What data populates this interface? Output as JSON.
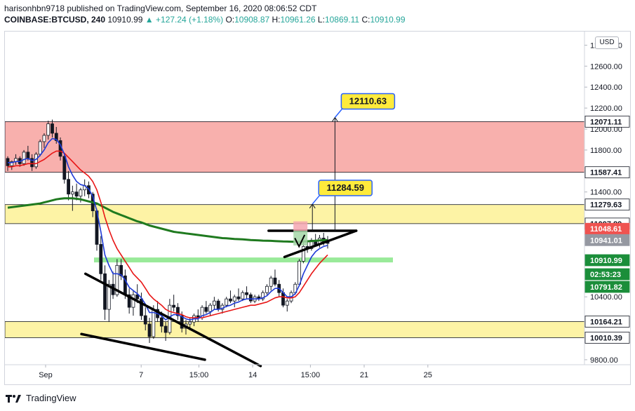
{
  "header": {
    "line1": "harisonhbn9718 published on TradingView.com, September 16, 2020 08:06:52 CDT",
    "symbol": "COINBASE:BTCUSD, 240",
    "last": "10910.99",
    "change_arrow": "▲",
    "change": "+127.24 (+1.18%)",
    "o_label": "O:",
    "o_val": "10908.87",
    "h_label": "H:",
    "h_val": "10961.26",
    "l_label": "L:",
    "l_val": "10869.11",
    "c_label": "C:",
    "c_val": "10910.99"
  },
  "currency_button": "USD",
  "footer": {
    "brand": "TradingView"
  },
  "colors": {
    "up": "#26a69a",
    "down": "#ef5350",
    "resistance_zone": "#f8b0ad",
    "support_zone": "#fdf3a5",
    "green_level": "#8ee88e",
    "ema_fast": "#1e3ad6",
    "ema_slow": "#e81515",
    "sma_long": "#1f7a1f"
  },
  "chart_data": {
    "type": "candlestick",
    "ylim": [
      9740,
      12750
    ],
    "y_ticks": [
      "9800.00",
      "10400.00",
      "11400.00",
      "11600.00",
      "11800.00",
      "12000.00",
      "12200.00",
      "12400.00",
      "12600.00",
      "12800.00"
    ],
    "x_ticks": [
      {
        "label": "Sep",
        "date": "2020-09-01"
      },
      {
        "label": "7",
        "date": "2020-09-07"
      },
      {
        "label": "15:00",
        "date": "2020-09-10 15:00"
      },
      {
        "label": "14",
        "date": "2020-09-14"
      },
      {
        "label": "15:00",
        "date": "2020-09-17 15:00"
      },
      {
        "label": "21",
        "date": "2020-09-21"
      },
      {
        "label": "25",
        "date": "2020-09-25"
      }
    ],
    "price_labels": [
      {
        "text": "12071.11",
        "value": 12071.11,
        "style": "outline"
      },
      {
        "text": "11587.41",
        "value": 11587.41,
        "style": "outline"
      },
      {
        "text": "11279.63",
        "value": 11279.63,
        "style": "outline"
      },
      {
        "text": "11097.89",
        "value": 11097.89,
        "style": "outline"
      },
      {
        "text": "11048.61",
        "value": 11048.61,
        "style": "red"
      },
      {
        "text": "10941.01",
        "value": 10941.01,
        "style": "gray"
      },
      {
        "text": "10910.99",
        "value": 10910.99,
        "style": "green"
      },
      {
        "text": "02:53:23",
        "value": 10850,
        "style": "green"
      },
      {
        "text": "10791.82",
        "value": 10791.82,
        "style": "green"
      },
      {
        "text": "10164.21",
        "value": 10164.21,
        "style": "outline"
      },
      {
        "text": "10010.39",
        "value": 10010.39,
        "style": "outline"
      }
    ],
    "zones": [
      {
        "name": "resistance",
        "from": 11587.41,
        "to": 12071.11
      },
      {
        "name": "supply",
        "from": 11097.89,
        "to": 11279.63
      },
      {
        "name": "demand",
        "from": 10010.39,
        "to": 10164.21
      }
    ],
    "green_level": {
      "value": 10755,
      "from": "2020-09-03",
      "to": "2020-09-19"
    },
    "targets": [
      {
        "text": "11284.59",
        "value": 11284.59
      },
      {
        "text": "12110.63",
        "value": 12110.63
      }
    ],
    "candles": [
      [
        11720,
        11740,
        11600,
        11650
      ],
      [
        11650,
        11700,
        11610,
        11690
      ],
      [
        11690,
        11760,
        11660,
        11720
      ],
      [
        11720,
        11740,
        11640,
        11670
      ],
      [
        11670,
        11800,
        11650,
        11780
      ],
      [
        11780,
        11840,
        11700,
        11720
      ],
      [
        11720,
        11760,
        11600,
        11640
      ],
      [
        11640,
        11780,
        11620,
        11760
      ],
      [
        11760,
        11900,
        11740,
        11880
      ],
      [
        11880,
        11960,
        11820,
        11940
      ],
      [
        11940,
        12080,
        11900,
        12050
      ],
      [
        12050,
        12090,
        11920,
        11960
      ],
      [
        11960,
        12020,
        11860,
        11890
      ],
      [
        11890,
        11920,
        11700,
        11740
      ],
      [
        11740,
        11760,
        11480,
        11520
      ],
      [
        11520,
        11600,
        11320,
        11380
      ],
      [
        11380,
        11460,
        11220,
        11400
      ],
      [
        11400,
        11480,
        11320,
        11360
      ],
      [
        11360,
        11440,
        11300,
        11420
      ],
      [
        11420,
        11520,
        11360,
        11460
      ],
      [
        11460,
        11500,
        11340,
        11380
      ],
      [
        11380,
        11400,
        11160,
        11220
      ],
      [
        11220,
        11240,
        10840,
        10900
      ],
      [
        10900,
        10980,
        10560,
        10620
      ],
      [
        10620,
        10700,
        10180,
        10280
      ],
      [
        10280,
        10560,
        10160,
        10520
      ],
      [
        10520,
        10640,
        10380,
        10420
      ],
      [
        10420,
        10760,
        10400,
        10700
      ],
      [
        10700,
        10760,
        10560,
        10600
      ],
      [
        10600,
        10660,
        10380,
        10420
      ],
      [
        10420,
        10480,
        10240,
        10300
      ],
      [
        10300,
        10460,
        10220,
        10420
      ],
      [
        10420,
        10520,
        10340,
        10380
      ],
      [
        10380,
        10440,
        10180,
        10220
      ],
      [
        10220,
        10300,
        10080,
        10140
      ],
      [
        10140,
        10200,
        9960,
        10020
      ],
      [
        10020,
        10320,
        10000,
        10280
      ],
      [
        10280,
        10360,
        10160,
        10200
      ],
      [
        10200,
        10260,
        10060,
        10120
      ],
      [
        10120,
        10160,
        9980,
        10060
      ],
      [
        10060,
        10380,
        10040,
        10320
      ],
      [
        10320,
        10420,
        10260,
        10300
      ],
      [
        10300,
        10340,
        10180,
        10220
      ],
      [
        10220,
        10260,
        10060,
        10100
      ],
      [
        10100,
        10180,
        10040,
        10140
      ],
      [
        10140,
        10200,
        10080,
        10160
      ],
      [
        10160,
        10240,
        10120,
        10220
      ],
      [
        10220,
        10280,
        10160,
        10200
      ],
      [
        10200,
        10320,
        10180,
        10300
      ],
      [
        10300,
        10360,
        10240,
        10260
      ],
      [
        10260,
        10340,
        10220,
        10320
      ],
      [
        10320,
        10400,
        10280,
        10360
      ],
      [
        10360,
        10380,
        10260,
        10280
      ],
      [
        10280,
        10340,
        10240,
        10320
      ],
      [
        10320,
        10400,
        10300,
        10380
      ],
      [
        10380,
        10460,
        10340,
        10360
      ],
      [
        10360,
        10420,
        10300,
        10400
      ],
      [
        10400,
        10480,
        10360,
        10380
      ],
      [
        10380,
        10460,
        10360,
        10440
      ],
      [
        10440,
        10500,
        10380,
        10420
      ],
      [
        10420,
        10440,
        10340,
        10360
      ],
      [
        10360,
        10420,
        10340,
        10400
      ],
      [
        10400,
        10420,
        10360,
        10380
      ],
      [
        10380,
        10460,
        10360,
        10440
      ],
      [
        10440,
        10520,
        10420,
        10500
      ],
      [
        10500,
        10600,
        10460,
        10580
      ],
      [
        10580,
        10660,
        10500,
        10520
      ],
      [
        10520,
        10560,
        10400,
        10440
      ],
      [
        10440,
        10480,
        10300,
        10320
      ],
      [
        10320,
        10380,
        10260,
        10360
      ],
      [
        10360,
        10460,
        10340,
        10440
      ],
      [
        10440,
        10540,
        10420,
        10520
      ],
      [
        10520,
        10760,
        10500,
        10740
      ],
      [
        10740,
        10920,
        10720,
        10880
      ],
      [
        10880,
        10940,
        10820,
        10860
      ],
      [
        10860,
        10960,
        10840,
        10940
      ],
      [
        10940,
        11000,
        10880,
        10900
      ],
      [
        10900,
        10990,
        10870,
        10960
      ],
      [
        10960,
        11010,
        10890,
        10920
      ],
      [
        10920,
        10980,
        10860,
        10910
      ]
    ],
    "ema_fast_values": [
      11680,
      11680,
      11690,
      11690,
      11710,
      11720,
      11700,
      11710,
      11750,
      11800,
      11870,
      11910,
      11900,
      11850,
      11760,
      11640,
      11560,
      11500,
      11470,
      11460,
      11430,
      11360,
      11220,
      11020,
      10800,
      10700,
      10620,
      10620,
      10610,
      10560,
      10490,
      10460,
      10430,
      10390,
      10330,
      10250,
      10250,
      10240,
      10220,
      10180,
      10210,
      10230,
      10230,
      10210,
      10190,
      10180,
      10190,
      10190,
      10220,
      10230,
      10250,
      10280,
      10280,
      10290,
      10310,
      10320,
      10340,
      10350,
      10370,
      10380,
      10380,
      10380,
      10380,
      10390,
      10410,
      10450,
      10480,
      10480,
      10440,
      10400,
      10400,
      10430,
      10510,
      10620,
      10700,
      10780,
      10830,
      10860,
      10880,
      10890
    ],
    "ema_slow_values": [
      11640,
      11640,
      11650,
      11650,
      11660,
      11670,
      11670,
      11670,
      11690,
      11710,
      11740,
      11770,
      11790,
      11790,
      11770,
      11730,
      11690,
      11650,
      11610,
      11580,
      11550,
      11500,
      11420,
      11300,
      11160,
      11040,
      10940,
      10860,
      10800,
      10740,
      10680,
      10620,
      10580,
      10540,
      10480,
      10420,
      10380,
      10350,
      10320,
      10280,
      10260,
      10250,
      10240,
      10230,
      10210,
      10200,
      10200,
      10200,
      10200,
      10210,
      10220,
      10230,
      10240,
      10250,
      10260,
      10270,
      10280,
      10290,
      10300,
      10310,
      10320,
      10320,
      10330,
      10340,
      10350,
      10370,
      10390,
      10400,
      10400,
      10390,
      10390,
      10400,
      10440,
      10500,
      10560,
      10620,
      10670,
      10720,
      10760,
      10800
    ],
    "sma_long_values": [
      11250,
      11255,
      11260,
      11265,
      11270,
      11275,
      11280,
      11285,
      11290,
      11300,
      11310,
      11320,
      11330,
      11335,
      11340,
      11340,
      11340,
      11335,
      11330,
      11320,
      11310,
      11300,
      11290,
      11270,
      11250,
      11230,
      11210,
      11195,
      11180,
      11165,
      11150,
      11135,
      11120,
      11110,
      11095,
      11080,
      11070,
      11060,
      11050,
      11040,
      11030,
      11020,
      11015,
      11010,
      11005,
      11000,
      10995,
      10990,
      10985,
      10980,
      10975,
      10970,
      10965,
      10960,
      10958,
      10955,
      10952,
      10950,
      10948,
      10945,
      10942,
      10940,
      10938,
      10936,
      10935,
      10934,
      10932,
      10930,
      10928,
      10927,
      10926,
      10925,
      10926,
      10928,
      10930,
      10932,
      10935,
      10938,
      10940,
      10941
    ]
  }
}
